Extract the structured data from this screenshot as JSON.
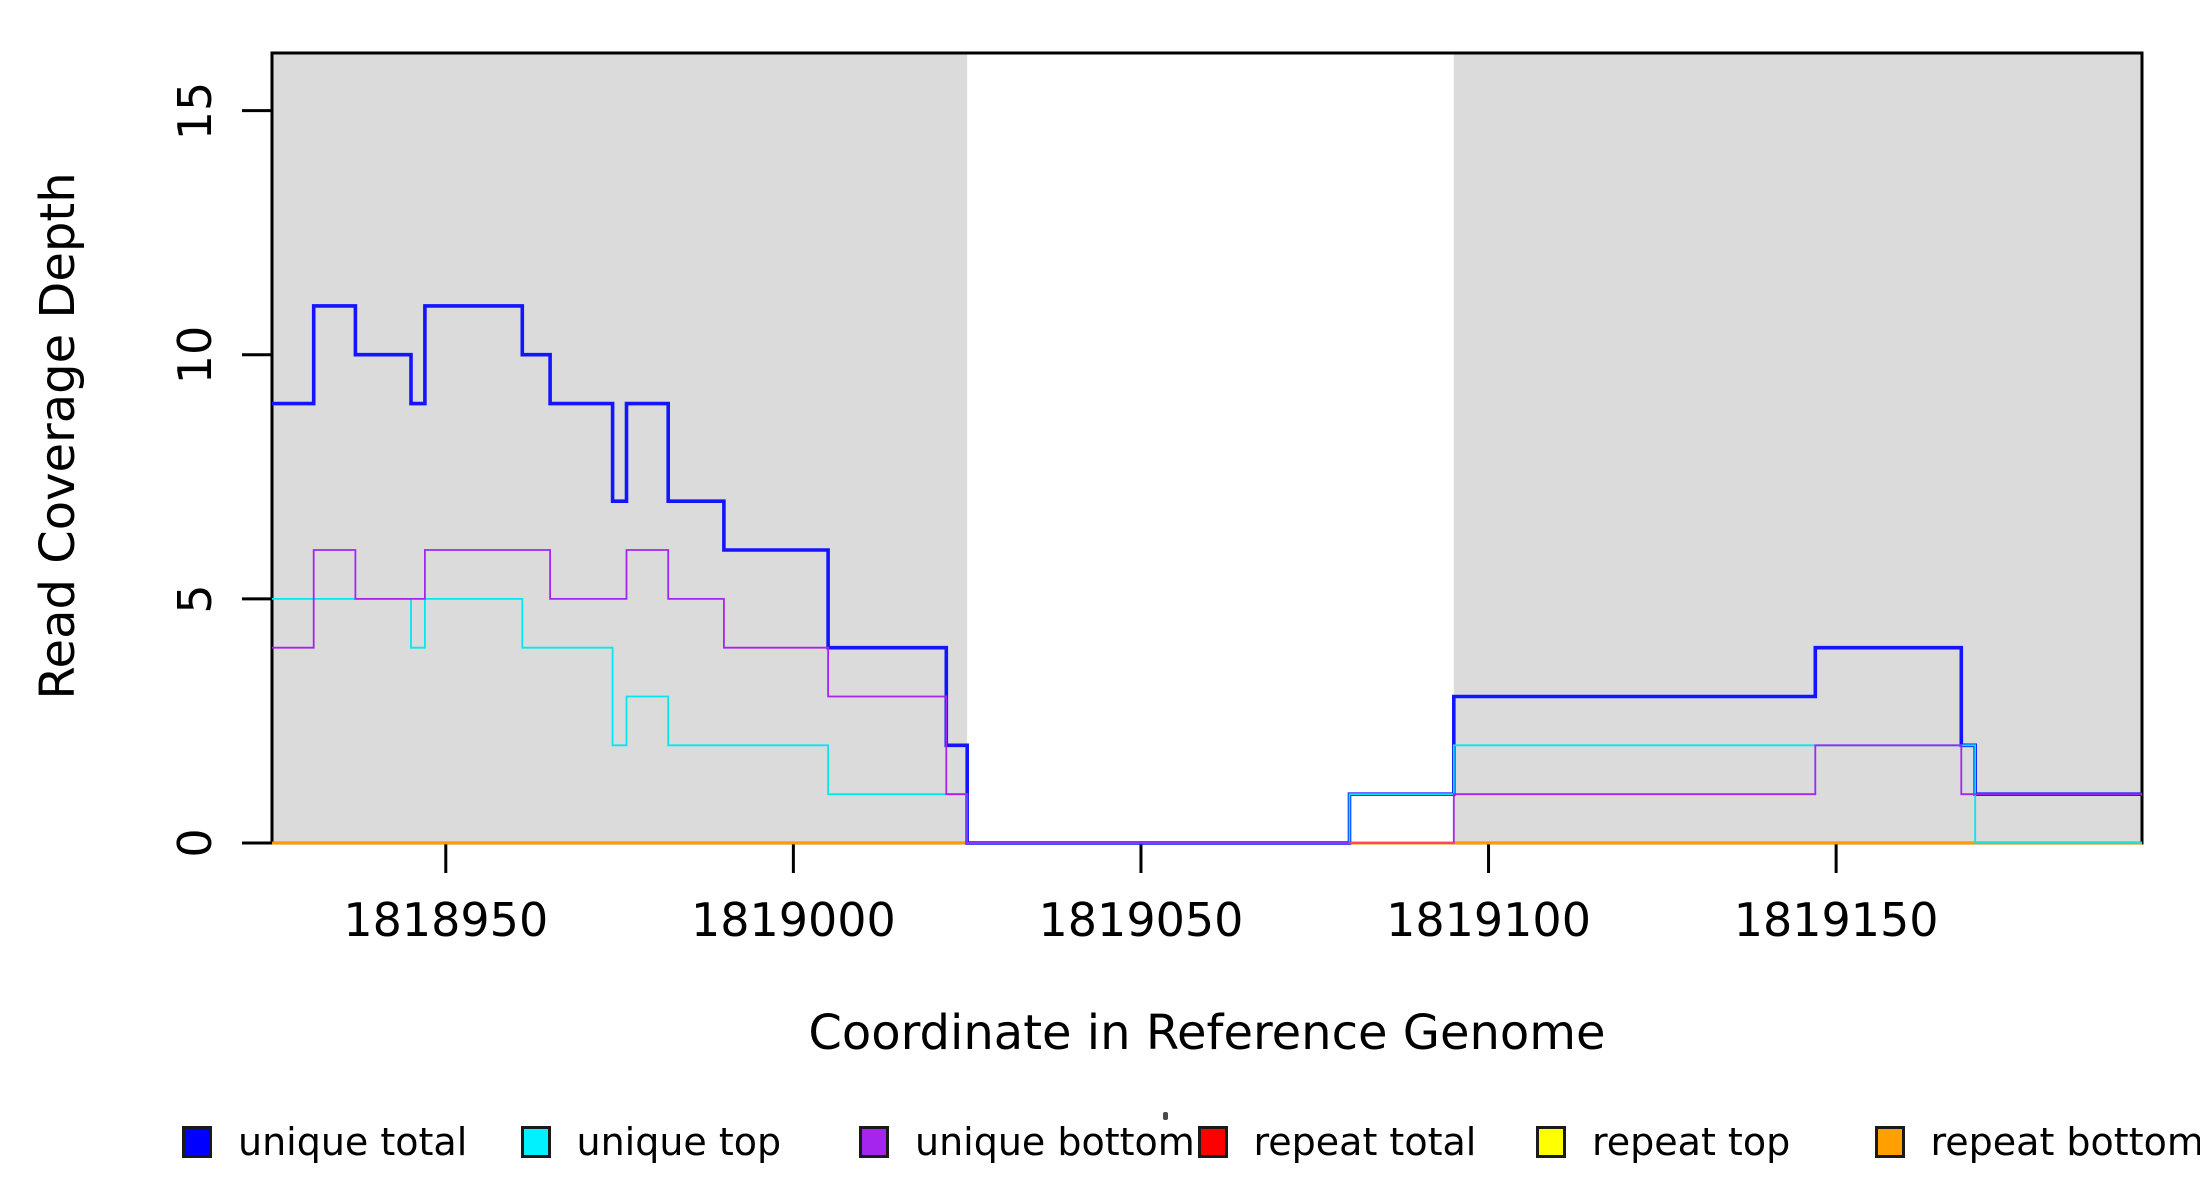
{
  "figure": {
    "xlabel": "Coordinate in Reference Genome",
    "ylabel": "Read Coverage Depth"
  },
  "chart_data": {
    "type": "line",
    "subtype": "step-coverage-plot",
    "title": "",
    "xlabel": "Coordinate in Reference Genome",
    "ylabel": "Read Coverage Depth",
    "xlim": [
      1818925,
      1819194
    ],
    "ylim": [
      0,
      16.18
    ],
    "x_ticks": [
      1818950,
      1819000,
      1819050,
      1819100,
      1819150
    ],
    "x_tick_labels": [
      "1818950",
      "1819000",
      "1819050",
      "1819100",
      "1819150"
    ],
    "y_ticks": [
      0,
      5,
      10,
      15
    ],
    "y_tick_labels": [
      "0",
      "5",
      "10",
      "15"
    ],
    "grid": false,
    "plot_border": true,
    "background_shading": [
      {
        "name": "shaded-region-left",
        "x0": 1818925,
        "x1": 1819025,
        "color": "#dbdbdb"
      },
      {
        "name": "shaded-region-right",
        "x0": 1819095,
        "x1": 1819194,
        "color": "#dbdbdb"
      }
    ],
    "series": [
      {
        "name": "repeat total",
        "color": "#ff0000",
        "line_width": 2.2,
        "change_points": [
          [
            1818925,
            0
          ]
        ]
      },
      {
        "name": "repeat top",
        "color": "#ffff00",
        "line_width": 2.2,
        "change_points": [
          [
            1818925,
            0
          ]
        ]
      },
      {
        "name": "repeat bottom",
        "color": "#ff9d00",
        "line_width": 2.8,
        "change_points": [
          [
            1818925,
            0
          ]
        ]
      },
      {
        "name": "unique total",
        "color": "#1414ff",
        "line_width": 3.6,
        "change_points": [
          [
            1818925,
            9
          ],
          [
            1818931,
            11
          ],
          [
            1818937,
            10
          ],
          [
            1818945,
            9
          ],
          [
            1818947,
            11
          ],
          [
            1818961,
            10
          ],
          [
            1818965,
            9
          ],
          [
            1818974,
            7
          ],
          [
            1818976,
            9
          ],
          [
            1818982,
            7
          ],
          [
            1818990,
            6
          ],
          [
            1819005,
            4
          ],
          [
            1819022,
            2
          ],
          [
            1819025,
            0
          ],
          [
            1819080,
            1
          ],
          [
            1819095,
            3
          ],
          [
            1819147,
            4
          ],
          [
            1819168,
            2
          ],
          [
            1819170,
            1
          ]
        ]
      },
      {
        "name": "unique top",
        "color": "#00e8f0",
        "line_width": 1.8,
        "change_points": [
          [
            1818925,
            5
          ],
          [
            1818945,
            4
          ],
          [
            1818947,
            5
          ],
          [
            1818961,
            4
          ],
          [
            1818974,
            2
          ],
          [
            1818976,
            3
          ],
          [
            1818982,
            2
          ],
          [
            1819005,
            1
          ],
          [
            1819025,
            0
          ],
          [
            1819080,
            1
          ],
          [
            1819095,
            2
          ],
          [
            1819170,
            0
          ]
        ]
      },
      {
        "name": "unique bottom",
        "color": "#a525ee",
        "line_width": 1.8,
        "change_points": [
          [
            1818925,
            4
          ],
          [
            1818931,
            6
          ],
          [
            1818937,
            5
          ],
          [
            1818947,
            6
          ],
          [
            1818965,
            5
          ],
          [
            1818976,
            6
          ],
          [
            1818982,
            5
          ],
          [
            1818990,
            4
          ],
          [
            1819005,
            3
          ],
          [
            1819022,
            1
          ],
          [
            1819025,
            0
          ],
          [
            1819095,
            1
          ],
          [
            1819147,
            2
          ],
          [
            1819168,
            1
          ]
        ]
      }
    ],
    "overdraw_segments": [
      {
        "name": "repeat-total-visible-at-zero",
        "color": "#ff4563",
        "line_width": 2.0,
        "x0": 1819080,
        "x1": 1819095,
        "value": 0
      }
    ],
    "legend_position": "bottom"
  },
  "legend": {
    "items": [
      {
        "label": "unique total",
        "color": "#0000ff"
      },
      {
        "label": "unique top",
        "color": "#00f2ff"
      },
      {
        "label": "unique bottom",
        "color": "#a525ee"
      },
      {
        "label": "repeat total",
        "color": "#ff0000"
      },
      {
        "label": "repeat top",
        "color": "#ffff00"
      },
      {
        "label": "repeat bottom",
        "color": "#ffa000"
      }
    ]
  }
}
